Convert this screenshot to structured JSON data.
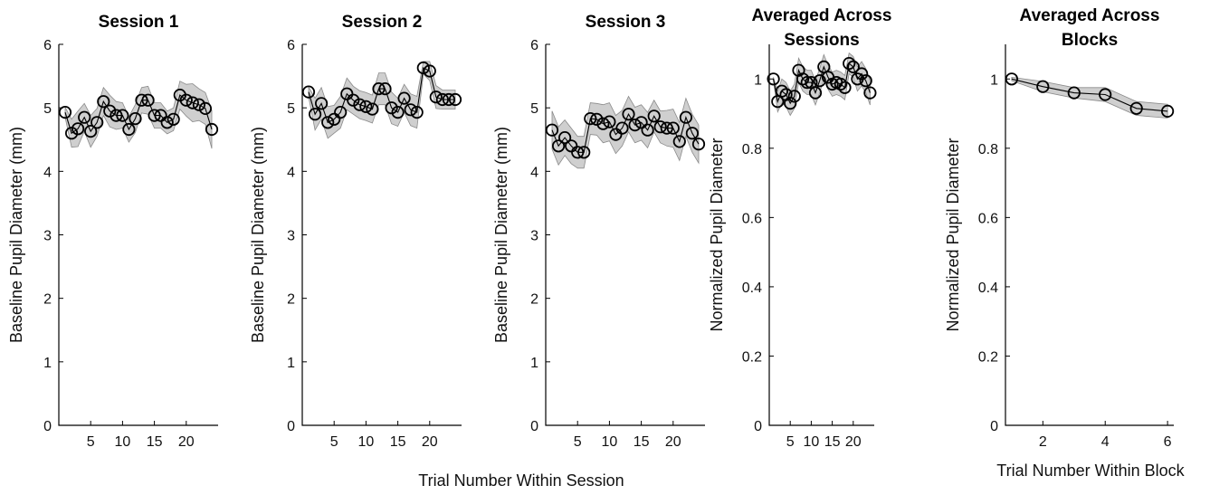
{
  "chart_data": [
    {
      "type": "line",
      "title": "Session 1",
      "xlabel": "",
      "ylabel": "Baseline Pupil Diameter (mm)",
      "xlim": [
        0,
        25
      ],
      "ylim": [
        0,
        6
      ],
      "xticks": [
        5,
        10,
        15,
        20
      ],
      "yticks": [
        0,
        1,
        2,
        3,
        4,
        5,
        6
      ],
      "grid": false,
      "series": [
        {
          "x": [
            1,
            2,
            3,
            4,
            5,
            6,
            7,
            8,
            9,
            10,
            11,
            12,
            13,
            14,
            15,
            16,
            17,
            18,
            19,
            20,
            21,
            22,
            23,
            24
          ],
          "y": [
            4.93,
            4.6,
            4.67,
            4.85,
            4.63,
            4.77,
            5.1,
            4.95,
            4.88,
            4.88,
            4.66,
            4.83,
            5.12,
            5.12,
            4.88,
            4.88,
            4.77,
            4.82,
            5.2,
            5.12,
            5.08,
            5.05,
            4.99,
            4.66
          ],
          "ci": [
            0.08,
            0.22,
            0.28,
            0.22,
            0.25,
            0.22,
            0.22,
            0.25,
            0.22,
            0.2,
            0.2,
            0.22,
            0.2,
            0.22,
            0.2,
            0.2,
            0.18,
            0.18,
            0.22,
            0.25,
            0.3,
            0.25,
            0.25,
            0.3
          ]
        }
      ]
    },
    {
      "type": "line",
      "title": "Session 2",
      "xlabel": "",
      "ylabel": "Baseline Pupil Diameter (mm)",
      "xlim": [
        0,
        25
      ],
      "ylim": [
        0,
        6
      ],
      "xticks": [
        5,
        10,
        15,
        20
      ],
      "yticks": [
        0,
        1,
        2,
        3,
        4,
        5,
        6
      ],
      "grid": false,
      "series": [
        {
          "x": [
            1,
            2,
            3,
            4,
            5,
            6,
            7,
            8,
            9,
            10,
            11,
            12,
            13,
            14,
            15,
            16,
            17,
            18,
            19,
            20,
            21,
            22,
            23,
            24
          ],
          "y": [
            5.25,
            4.9,
            5.07,
            4.77,
            4.82,
            4.93,
            5.22,
            5.12,
            5.05,
            5.02,
            4.98,
            5.3,
            5.3,
            5.0,
            4.93,
            5.15,
            4.97,
            4.93,
            5.63,
            5.58,
            5.17,
            5.13,
            5.13,
            5.13
          ],
          "ci": [
            0.08,
            0.25,
            0.25,
            0.25,
            0.22,
            0.25,
            0.25,
            0.22,
            0.22,
            0.22,
            0.22,
            0.25,
            0.25,
            0.25,
            0.22,
            0.22,
            0.25,
            0.25,
            0.1,
            0.15,
            0.18,
            0.15,
            0.15,
            0.15
          ]
        }
      ]
    },
    {
      "type": "line",
      "title": "Session 3",
      "xlabel": "Trial Number Within Session",
      "ylabel": "Baseline Pupil Diameter (mm)",
      "xlim": [
        0,
        25
      ],
      "ylim": [
        0,
        6
      ],
      "xticks": [
        5,
        10,
        15,
        20
      ],
      "yticks": [
        0,
        1,
        2,
        3,
        4,
        5,
        6
      ],
      "grid": false,
      "series": [
        {
          "x": [
            1,
            2,
            3,
            4,
            5,
            6,
            7,
            8,
            9,
            10,
            11,
            12,
            13,
            14,
            15,
            16,
            17,
            18,
            19,
            20,
            21,
            22,
            23,
            24
          ],
          "y": [
            4.65,
            4.4,
            4.53,
            4.4,
            4.3,
            4.3,
            4.83,
            4.82,
            4.75,
            4.78,
            4.58,
            4.68,
            4.9,
            4.73,
            4.77,
            4.65,
            4.87,
            4.7,
            4.68,
            4.68,
            4.47,
            4.85,
            4.6,
            4.43
          ],
          "ci": [
            0.3,
            0.3,
            0.28,
            0.28,
            0.25,
            0.25,
            0.25,
            0.25,
            0.3,
            0.3,
            0.3,
            0.28,
            0.28,
            0.28,
            0.28,
            0.28,
            0.25,
            0.25,
            0.28,
            0.3,
            0.3,
            0.3,
            0.3,
            0.3
          ]
        }
      ]
    },
    {
      "type": "line",
      "title": "Averaged Across Sessions",
      "xlabel": "",
      "ylabel": "Normalized Pupil Diameter",
      "xlim": [
        0,
        25
      ],
      "ylim": [
        0,
        1.1
      ],
      "xticks": [
        5,
        10,
        15,
        20
      ],
      "yticks": [
        0,
        0.2,
        0.4,
        0.6,
        0.8,
        1
      ],
      "grid": false,
      "series": [
        {
          "x": [
            1,
            2,
            3,
            4,
            5,
            6,
            7,
            8,
            9,
            10,
            11,
            12,
            13,
            14,
            15,
            16,
            17,
            18,
            19,
            20,
            21,
            22,
            23,
            24
          ],
          "y": [
            1.0,
            0.935,
            0.965,
            0.955,
            0.93,
            0.95,
            1.025,
            1.0,
            0.99,
            0.99,
            0.96,
            0.995,
            1.035,
            1.005,
            0.985,
            0.99,
            0.985,
            0.975,
            1.045,
            1.035,
            1.0,
            1.015,
            0.995,
            0.96
          ],
          "ci": [
            0.005,
            0.03,
            0.035,
            0.035,
            0.035,
            0.035,
            0.035,
            0.035,
            0.035,
            0.035,
            0.035,
            0.035,
            0.035,
            0.035,
            0.035,
            0.035,
            0.035,
            0.035,
            0.03,
            0.03,
            0.035,
            0.035,
            0.035,
            0.035
          ]
        }
      ]
    },
    {
      "type": "line",
      "title": "Averaged Across Blocks",
      "xlabel": "Trial Number Within Block",
      "ylabel": "Normalized Pupil Diameter",
      "xlim": [
        0.8,
        6.2
      ],
      "ylim": [
        0,
        1.1
      ],
      "xticks": [
        2,
        4,
        6
      ],
      "yticks": [
        0,
        0.2,
        0.4,
        0.6,
        0.8,
        1
      ],
      "grid": false,
      "series": [
        {
          "x": [
            1,
            2,
            3,
            4,
            5,
            6
          ],
          "y": [
            1.0,
            0.978,
            0.96,
            0.955,
            0.915,
            0.907
          ],
          "ci": [
            0.005,
            0.015,
            0.015,
            0.02,
            0.02,
            0.02
          ]
        }
      ]
    }
  ]
}
